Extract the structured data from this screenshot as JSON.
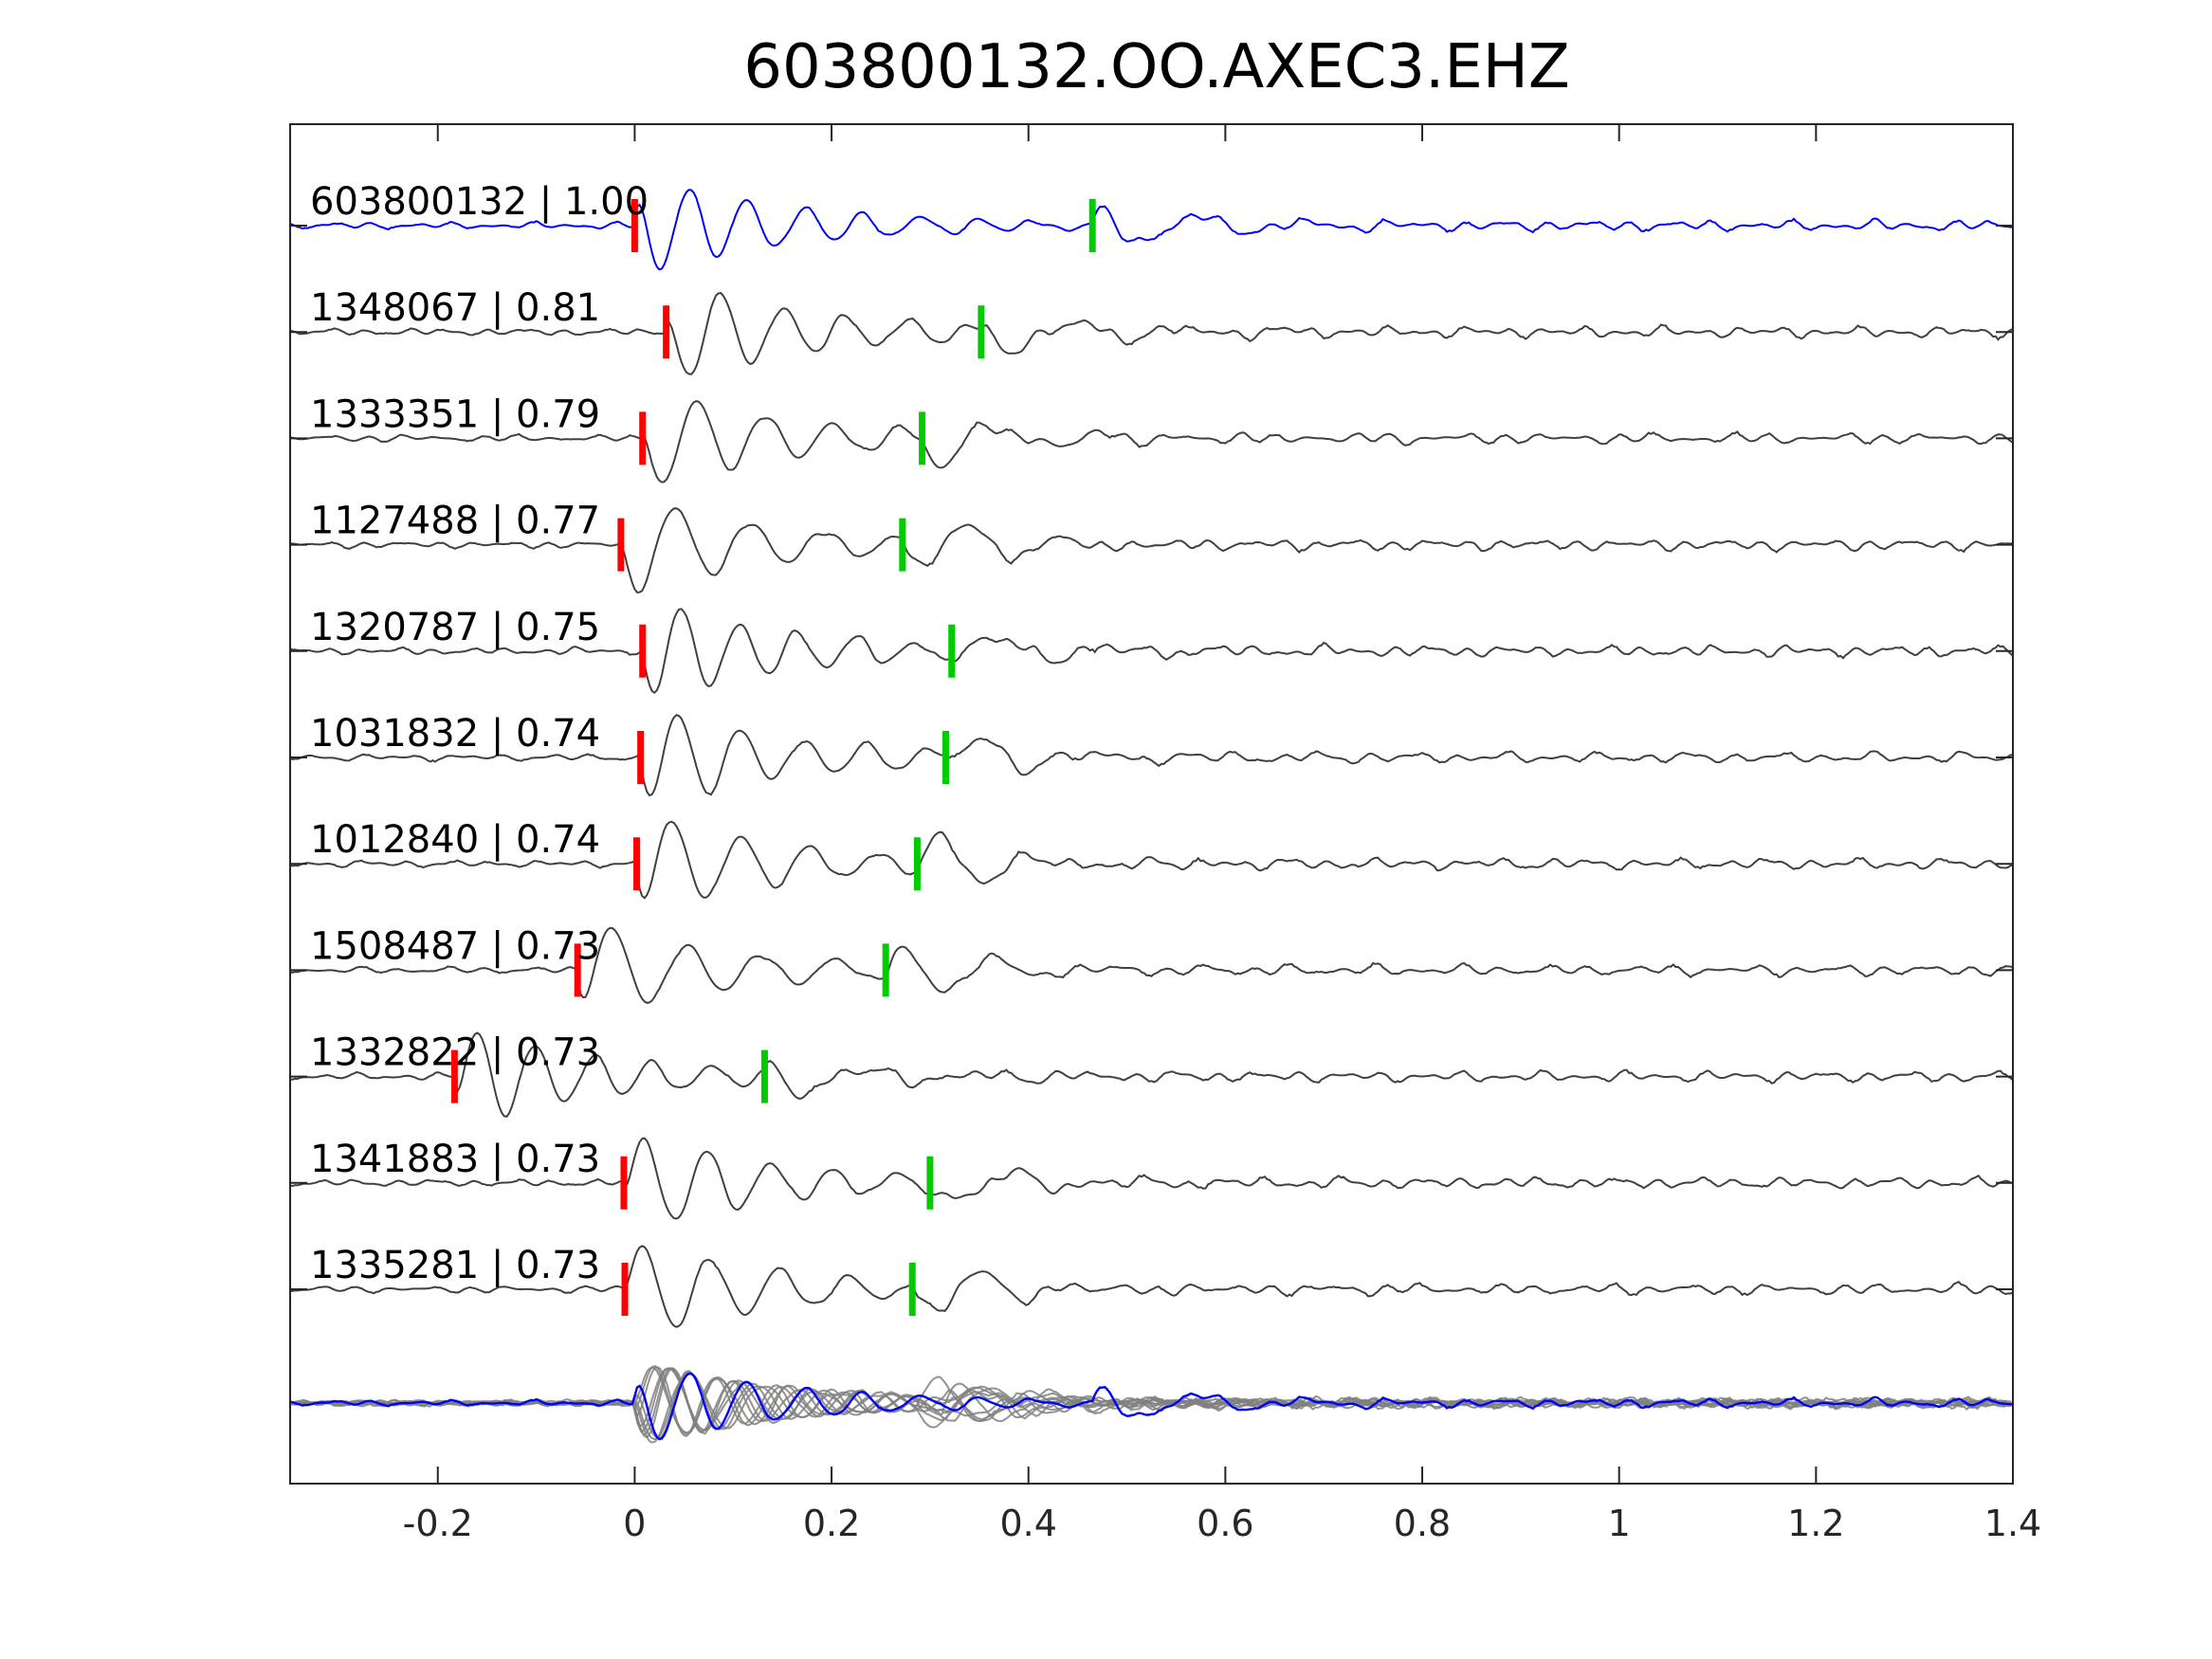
{
  "chart_data": {
    "type": "line",
    "title": "603800132.OO.AXEC3.EHZ",
    "xlabel": "",
    "ylabel": "",
    "xlim": [
      -0.35,
      1.4
    ],
    "x_ticks": [
      {
        "value": -0.2,
        "label": "-0.2"
      },
      {
        "value": 0,
        "label": "0"
      },
      {
        "value": 0.2,
        "label": "0.2"
      },
      {
        "value": 0.4,
        "label": "0.4"
      },
      {
        "value": 0.6,
        "label": "0.6"
      },
      {
        "value": 0.8,
        "label": "0.8"
      },
      {
        "value": 1,
        "label": "1"
      },
      {
        "value": 1.2,
        "label": "1.2"
      },
      {
        "value": 1.4,
        "label": "1.4"
      }
    ],
    "grid": false,
    "colors": {
      "template": "#0000ff",
      "trace": "#404040",
      "stack": "#808080",
      "p_pick": "#ff0000",
      "s_pick": "#00cc00",
      "axis": "#262626"
    },
    "traces": [
      {
        "id": "603800132",
        "cc": "1.00",
        "label": "603800132 | 1.00",
        "p_pick": 0.0,
        "s_pick": 0.465,
        "template": true
      },
      {
        "id": "1348067",
        "cc": "0.81",
        "label": "1348067 | 0.81",
        "p_pick": 0.032,
        "s_pick": 0.352,
        "template": false
      },
      {
        "id": "1333351",
        "cc": "0.79",
        "label": "1333351 | 0.79",
        "p_pick": 0.008,
        "s_pick": 0.292,
        "template": false
      },
      {
        "id": "1127488",
        "cc": "0.77",
        "label": "1127488 | 0.77",
        "p_pick": -0.014,
        "s_pick": 0.272,
        "template": false
      },
      {
        "id": "1320787",
        "cc": "0.75",
        "label": "1320787 | 0.75",
        "p_pick": 0.008,
        "s_pick": 0.322,
        "template": false
      },
      {
        "id": "1031832",
        "cc": "0.74",
        "label": "1031832 | 0.74",
        "p_pick": 0.006,
        "s_pick": 0.316,
        "template": false
      },
      {
        "id": "1012840",
        "cc": "0.74",
        "label": "1012840 | 0.74",
        "p_pick": 0.002,
        "s_pick": 0.287,
        "template": false
      },
      {
        "id": "1508487",
        "cc": "0.73",
        "label": "1508487 | 0.73",
        "p_pick": -0.058,
        "s_pick": 0.255,
        "template": false
      },
      {
        "id": "1332822",
        "cc": "0.73",
        "label": "1332822 | 0.73",
        "p_pick": -0.183,
        "s_pick": 0.132,
        "template": false
      },
      {
        "id": "1341883",
        "cc": "0.73",
        "label": "1341883 | 0.73",
        "p_pick": -0.011,
        "s_pick": 0.3,
        "template": false
      },
      {
        "id": "1335281",
        "cc": "0.73",
        "label": "1335281 | 0.73",
        "p_pick": -0.01,
        "s_pick": 0.282,
        "template": false
      }
    ]
  }
}
